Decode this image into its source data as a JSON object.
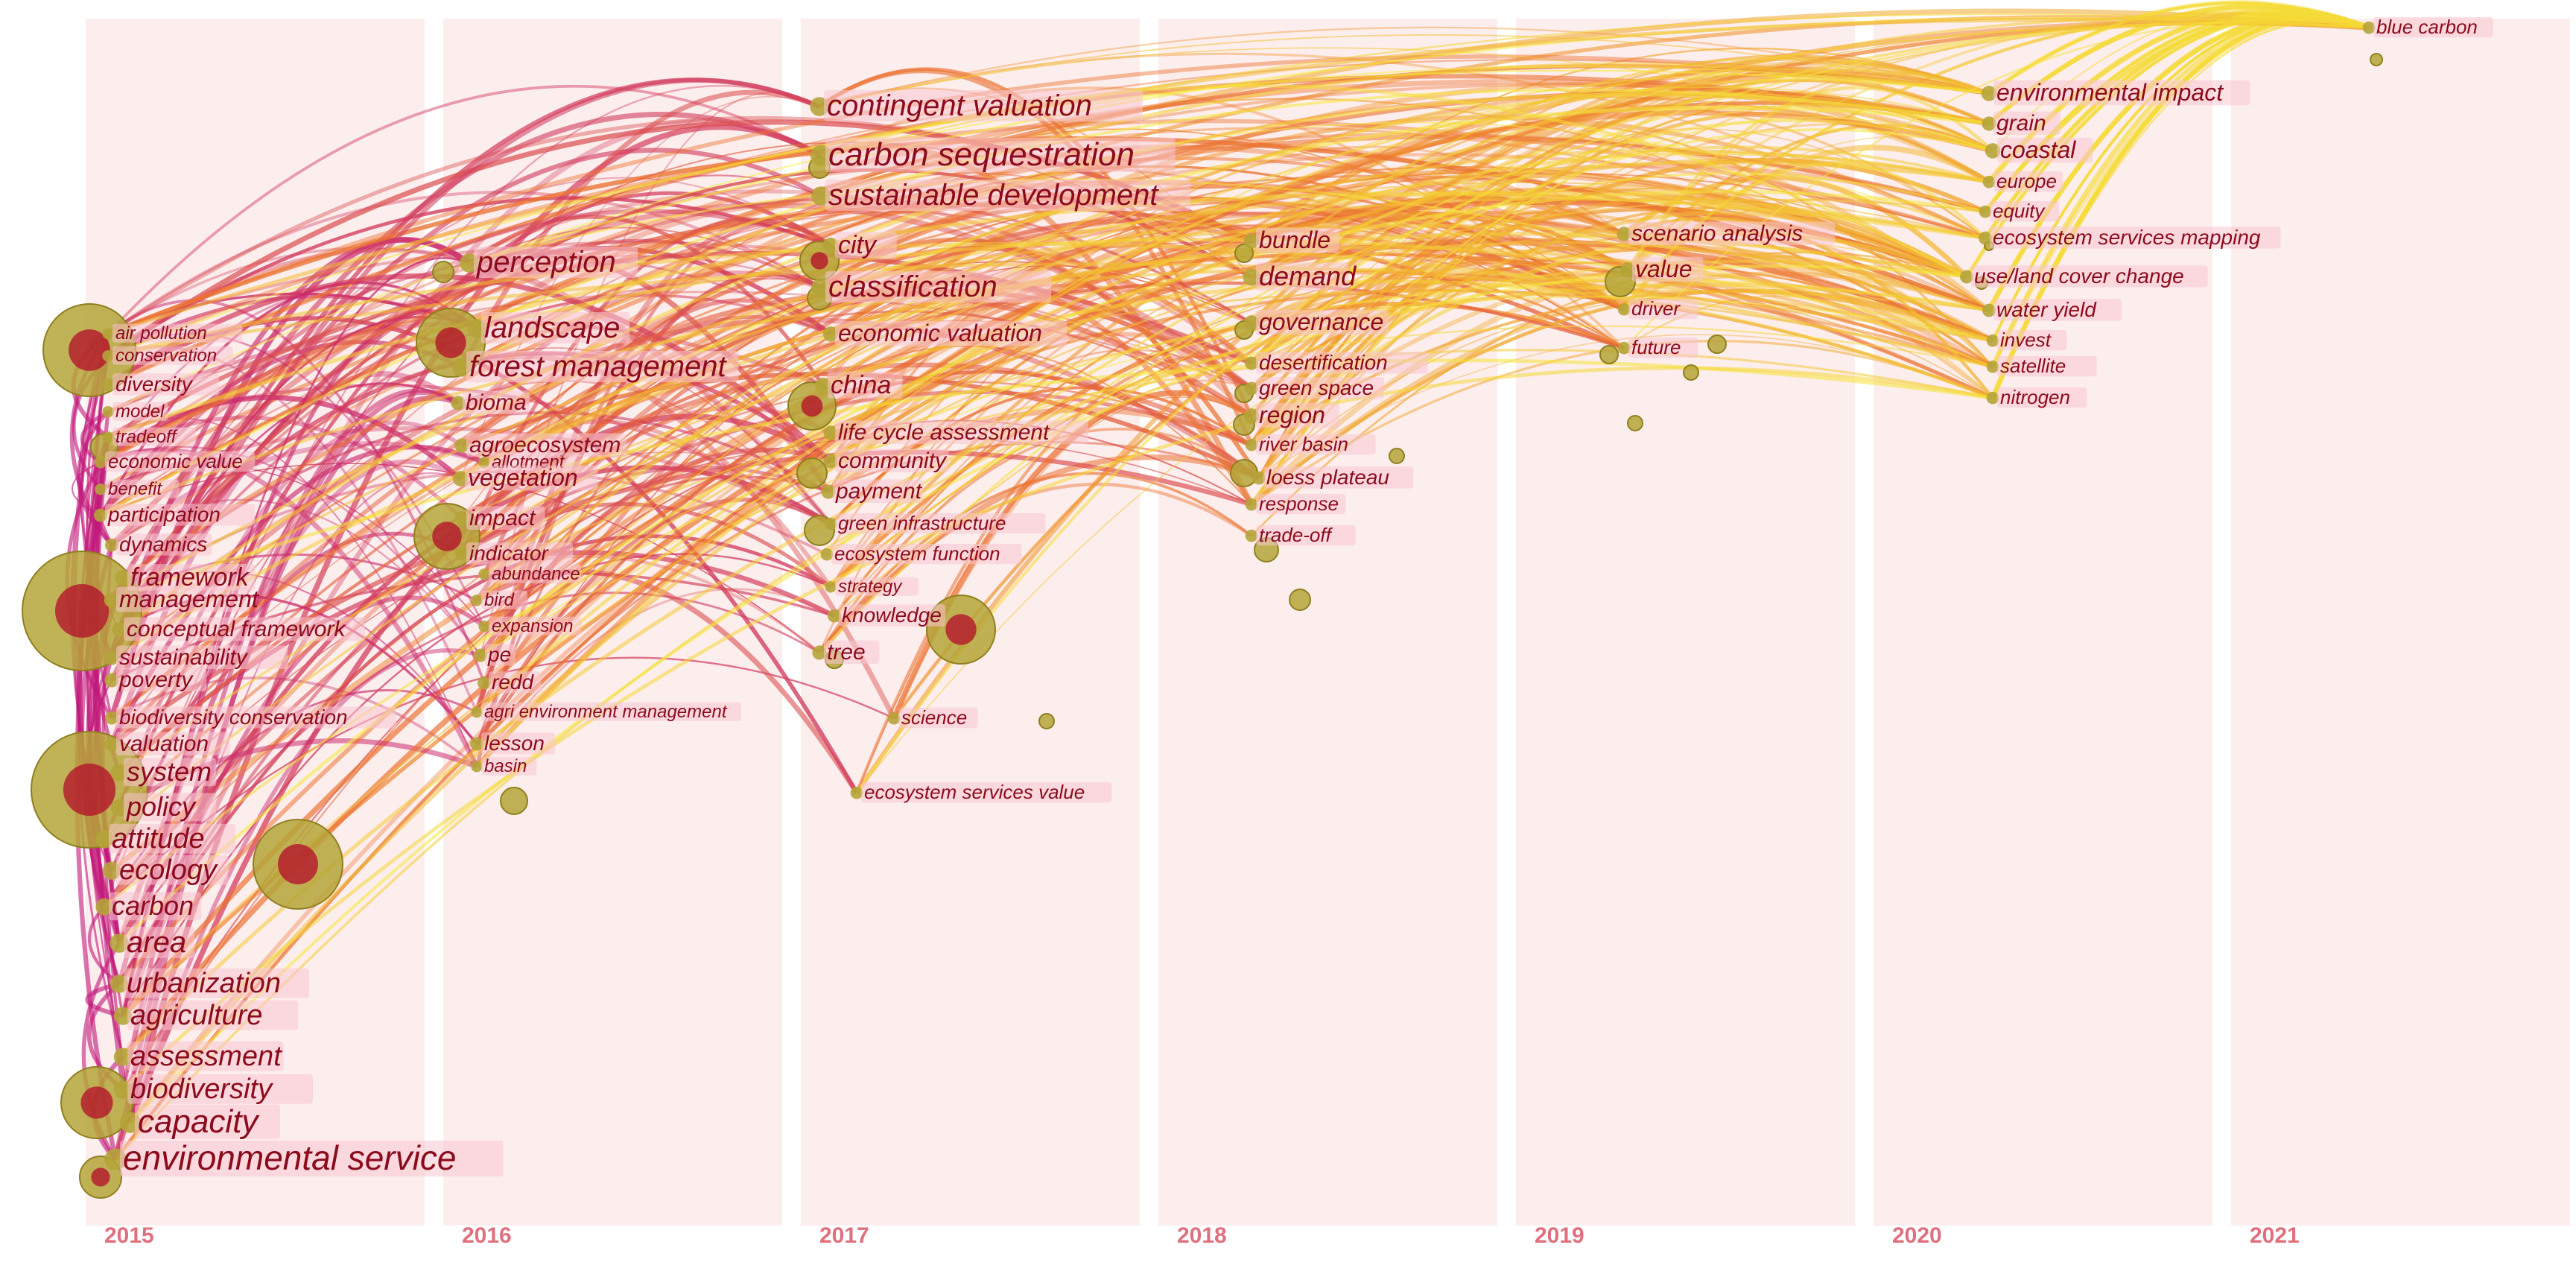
{
  "years": [
    "2015",
    "2016",
    "2017",
    "2018",
    "2019",
    "2020",
    "2021"
  ],
  "colors": {
    "band": "#fdeeee",
    "year_label": "#e0707e",
    "label_text": "#8b0a1c",
    "label_bg": "#f7c6cf",
    "gradient_old": "#c2187a",
    "gradient_mid": "#ee7a2c",
    "gradient_new": "#f6ec3a",
    "node_old": "#b5a438",
    "node_inner": "#b30c2a"
  },
  "keywords": [
    {
      "year": "2015",
      "labels": [
        "air pollution",
        "conservation",
        "diversity",
        "model",
        "tradeoff",
        "economic value",
        "benefit",
        "participation",
        "dynamics",
        "framework",
        "management",
        "conceptual framework",
        "sustainability",
        "poverty",
        "biodiversity conservation",
        "valuation",
        "system",
        "policy",
        "attitude",
        "ecology",
        "carbon",
        "area",
        "urbanization",
        "agriculture",
        "assessment",
        "biodiversity",
        "capacity",
        "environmental service"
      ]
    },
    {
      "year": "2016",
      "labels": [
        "perception",
        "landscape",
        "forest management",
        "bioma",
        "agroecosystem",
        "allotment",
        "vegetation",
        "impact",
        "indicator",
        "abundance",
        "bird",
        "expansion",
        "pe",
        "redd",
        "agri environment management",
        "lesson",
        "basin"
      ]
    },
    {
      "year": "2017",
      "labels": [
        "contingent valuation",
        "carbon sequestration",
        "sustainable development",
        "city",
        "classification",
        "economic valuation",
        "china",
        "life cycle assessment",
        "community",
        "payment",
        "green infrastructure",
        "ecosystem function",
        "strategy",
        "knowledge",
        "tree",
        "science",
        "ecosystem services value"
      ]
    },
    {
      "year": "2018",
      "labels": [
        "bundle",
        "demand",
        "governance",
        "desertification",
        "green space",
        "region",
        "river basin",
        "loess plateau",
        "response",
        "trade-off"
      ]
    },
    {
      "year": "2019",
      "labels": [
        "scenario analysis",
        "value",
        "driver",
        "future"
      ]
    },
    {
      "year": "2020",
      "labels": [
        "environmental impact",
        "grain",
        "coastal",
        "europe",
        "equity",
        "ecosystem services mapping",
        "use/land cover change",
        "water yield",
        "invest",
        "satellite",
        "nitrogen"
      ]
    },
    {
      "year": "2021",
      "labels": [
        "blue carbon"
      ]
    }
  ]
}
